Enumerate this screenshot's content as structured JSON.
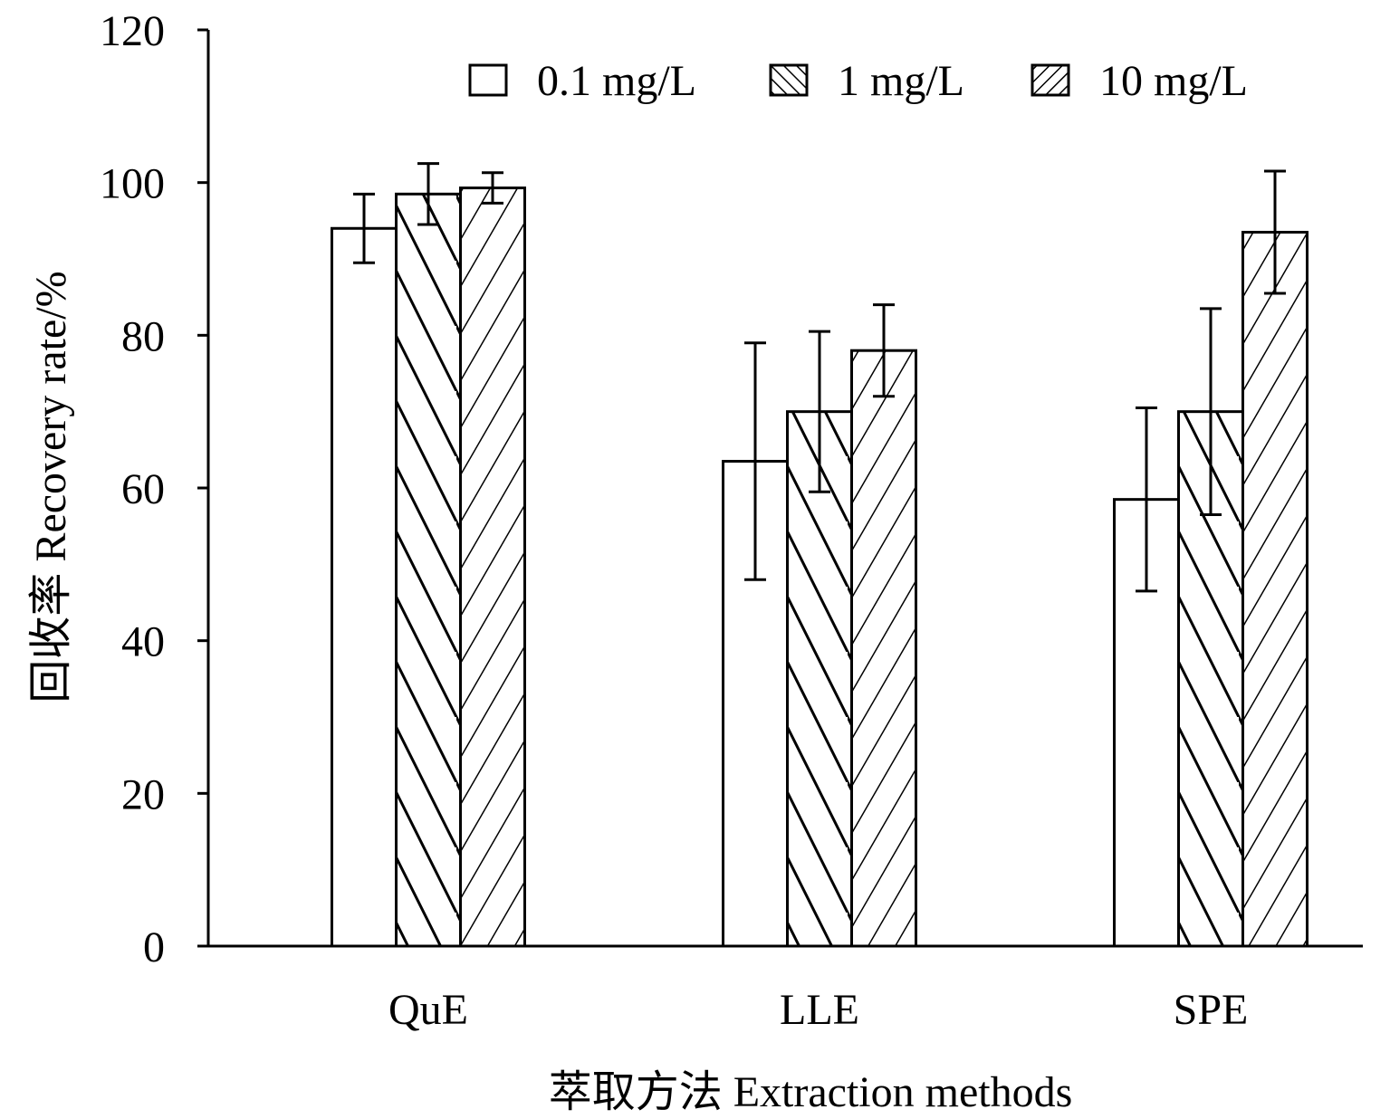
{
  "chart_data": {
    "type": "bar",
    "title": "",
    "xlabel": "萃取方法 Extraction methods",
    "ylabel": "回收率 Recovery rate/%",
    "categories": [
      "QuE",
      "LLE",
      "SPE"
    ],
    "series": [
      {
        "name": "0.1 mg/L",
        "values": [
          94.0,
          63.5,
          58.5
        ],
        "errors": [
          4.5,
          15.5,
          12.0
        ],
        "pattern": "none"
      },
      {
        "name": "1 mg/L",
        "values": [
          98.5,
          70.0,
          70.0
        ],
        "errors": [
          4.0,
          10.5,
          13.5
        ],
        "pattern": "backslash"
      },
      {
        "name": "10 mg/L",
        "values": [
          99.3,
          78.0,
          93.5
        ],
        "errors": [
          2.0,
          6.0,
          8.0
        ],
        "pattern": "slash"
      }
    ],
    "ylim": [
      0,
      120
    ],
    "yticks": [
      0,
      20,
      40,
      60,
      80,
      100,
      120
    ],
    "grid": false,
    "legend_position": "top-right",
    "colors": {
      "stroke": "#000000",
      "fill": "#ffffff"
    }
  }
}
